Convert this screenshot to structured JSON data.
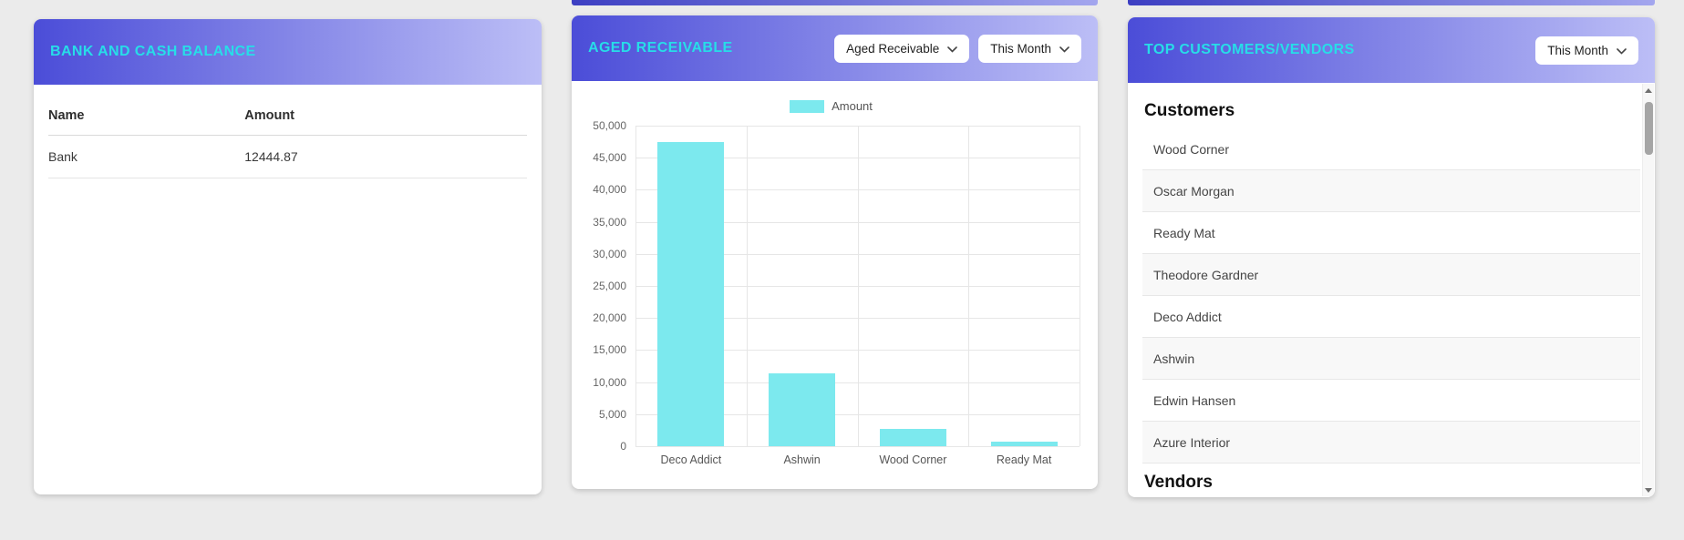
{
  "colors": {
    "page-bg": "#ebebeb",
    "header-grad-start": "#4b4dd8",
    "header-grad-end": "#bcbef6",
    "title-cyan": "#27dde8",
    "bar-fill": "#7ce9ee",
    "grid-line": "#e6e6e6"
  },
  "bank_card": {
    "title": "BANK AND CASH BALANCE",
    "columns": [
      "Name",
      "Amount"
    ],
    "rows": [
      {
        "name": "Bank",
        "amount": "12444.87"
      }
    ]
  },
  "aged_card": {
    "title": "AGED RECEIVABLE",
    "type_select": "Aged Receivable",
    "period_select": "This Month",
    "legend_label": "Amount"
  },
  "top_card": {
    "title": "TOP CUSTOMERS/VENDORS",
    "period_select": "This Month",
    "sections": [
      {
        "heading": "Customers",
        "items": [
          "Wood Corner",
          "Oscar Morgan",
          "Ready Mat",
          "Theodore Gardner",
          "Deco Addict",
          "Ashwin",
          "Edwin Hansen",
          "Azure Interior"
        ]
      },
      {
        "heading": "Vendors",
        "items": []
      }
    ]
  },
  "chart_data": {
    "type": "bar",
    "title": "Aged Receivable",
    "categories": [
      "Deco Addict",
      "Ashwin",
      "Wood Corner",
      "Ready Mat"
    ],
    "series": [
      {
        "name": "Amount",
        "values": [
          47500,
          11400,
          2700,
          700
        ]
      }
    ],
    "xlabel": "",
    "ylabel": "",
    "ylim": [
      0,
      50000
    ],
    "ytick_step": 5000,
    "legend_position": "top",
    "grid": true
  }
}
